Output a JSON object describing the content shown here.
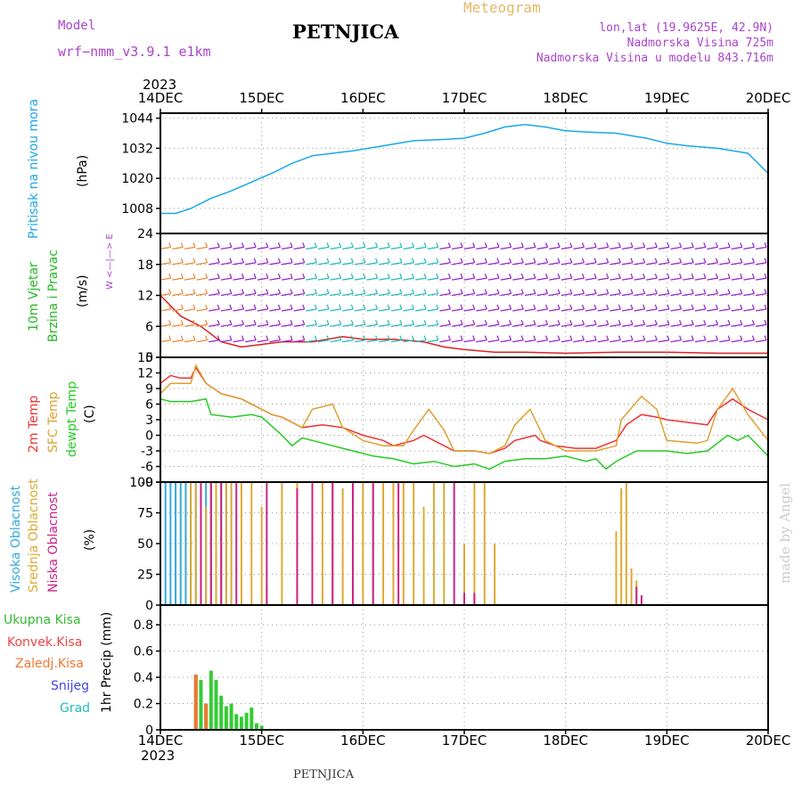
{
  "header": {
    "model_label": "Model",
    "model_name": "wrf−nmm_v3.9.1  e1km",
    "station": "PETNJICA",
    "meteogram": "Meteogram",
    "coords": "lon,lat (19.9625E, 42.9N)",
    "elevation": "Nadmorska Visina 725m",
    "model_elevation": "Nadmorska Visina u modelu 843.716m",
    "footer_station": "PETNJICA",
    "watermark": "made by Angel"
  },
  "time_axis": {
    "year_top": "2023",
    "year_bottom": "2023",
    "ticks": [
      "14DEC",
      "15DEC",
      "16DEC",
      "17DEC",
      "18DEC",
      "19DEC",
      "20DEC"
    ]
  },
  "panel_labels": {
    "pressure": {
      "name": "Pritisak na nivou mora",
      "unit": "(hPa)"
    },
    "wind": {
      "name1": "10m Vjetar",
      "name2": "Brzina i Pravac",
      "unit": "(m/s)",
      "compass": "W <—|—> E"
    },
    "temp": {
      "t2m": "2m Temp",
      "sfc": "SFC Temp",
      "dew": "dewpt Temp",
      "unit": "(C)"
    },
    "cloud": {
      "high": "Visoka Oblacnost",
      "mid": "Srednja Oblacnost",
      "low": "Niska Oblacnost",
      "unit": "(%)"
    },
    "precip": {
      "total": "Ukupna Kisa",
      "conv": "Konvek.Kisa",
      "frz": "Zaledj.Kisa",
      "snow": "Snijeg",
      "hail": "Grad",
      "unit": "1hr Precip (mm)"
    }
  },
  "colors": {
    "pressure": "#1aa7e8",
    "t2m": "#ee3333",
    "sfc": "#e0a030",
    "dew": "#22cc22",
    "high": "#33aadd",
    "mid": "#ddaa33",
    "low": "#cc2288",
    "precip_total": "#33cc33",
    "precip_conv": "#ee4444",
    "precip_frz": "#ee7733",
    "snow": "#4444dd",
    "hail": "#22bbbb",
    "wind_barb": "#9922cc",
    "wind_speed": "#dd2222"
  },
  "chart_data": [
    {
      "type": "line",
      "id": "pressure",
      "ylabel": "(hPa)",
      "yticks": [
        1008,
        1020,
        1032,
        1044
      ],
      "ylim": [
        998,
        1046
      ],
      "xlim": [
        0,
        6
      ],
      "grid": true,
      "series": [
        {
          "points": [
            [
              0,
              1006
            ],
            [
              0.15,
              1006
            ],
            [
              0.3,
              1008
            ],
            [
              0.5,
              1012
            ],
            [
              0.7,
              1015
            ],
            [
              0.9,
              1018.5
            ],
            [
              1.1,
              1022
            ],
            [
              1.3,
              1026
            ],
            [
              1.5,
              1029
            ],
            [
              1.7,
              1030
            ],
            [
              1.9,
              1031
            ],
            [
              2.2,
              1033
            ],
            [
              2.5,
              1035
            ],
            [
              2.8,
              1035.5
            ],
            [
              3.0,
              1036
            ],
            [
              3.2,
              1038
            ],
            [
              3.4,
              1040.5
            ],
            [
              3.6,
              1041.5
            ],
            [
              3.8,
              1040.5
            ],
            [
              4.0,
              1039
            ],
            [
              4.2,
              1038.5
            ],
            [
              4.5,
              1038
            ],
            [
              4.8,
              1036
            ],
            [
              5.0,
              1034
            ],
            [
              5.2,
              1033
            ],
            [
              5.5,
              1032
            ],
            [
              5.8,
              1030
            ],
            [
              6.0,
              1022
            ]
          ]
        }
      ]
    },
    {
      "type": "line",
      "id": "wind",
      "ylabel": "(m/s)",
      "yticks": [
        0,
        6,
        12,
        18,
        24
      ],
      "ylim": [
        0,
        24
      ],
      "xlim": [
        0,
        6
      ],
      "grid": true,
      "series": [
        {
          "points": [
            [
              0,
              12
            ],
            [
              0.2,
              8
            ],
            [
              0.4,
              6
            ],
            [
              0.6,
              3
            ],
            [
              0.8,
              2
            ],
            [
              1.0,
              2.5
            ],
            [
              1.2,
              3
            ],
            [
              1.5,
              3
            ],
            [
              1.8,
              4
            ],
            [
              2.0,
              3.5
            ],
            [
              2.3,
              3.5
            ],
            [
              2.6,
              3
            ],
            [
              2.8,
              2
            ],
            [
              3.0,
              1.5
            ],
            [
              3.3,
              1
            ],
            [
              3.6,
              1
            ],
            [
              4.0,
              0.8
            ],
            [
              4.5,
              1
            ],
            [
              5.0,
              1
            ],
            [
              5.5,
              0.8
            ],
            [
              6.0,
              0.8
            ]
          ]
        }
      ]
    },
    {
      "type": "line",
      "id": "temp",
      "ylabel": "(C)",
      "yticks": [
        -9,
        -6,
        -3,
        0,
        3,
        6,
        9,
        12,
        15
      ],
      "ylim": [
        -9,
        15
      ],
      "xlim": [
        0,
        6
      ],
      "grid": true,
      "series": [
        {
          "points": [
            [
              0,
              10
            ],
            [
              0.1,
              11.5
            ],
            [
              0.2,
              11
            ],
            [
              0.3,
              11
            ],
            [
              0.35,
              13
            ],
            [
              0.45,
              10
            ],
            [
              0.6,
              8
            ],
            [
              0.8,
              7
            ],
            [
              1.0,
              5
            ],
            [
              1.1,
              4
            ],
            [
              1.2,
              3.5
            ],
            [
              1.4,
              1.5
            ],
            [
              1.6,
              2
            ],
            [
              1.8,
              1.5
            ],
            [
              2.0,
              0
            ],
            [
              2.2,
              -1
            ],
            [
              2.3,
              -2
            ],
            [
              2.5,
              -1
            ],
            [
              2.6,
              0
            ],
            [
              2.7,
              -1
            ],
            [
              2.9,
              -3
            ],
            [
              3.1,
              -3
            ],
            [
              3.25,
              -3.5
            ],
            [
              3.4,
              -2.5
            ],
            [
              3.5,
              -1
            ],
            [
              3.6,
              -0.5
            ],
            [
              3.7,
              0
            ],
            [
              3.75,
              -1
            ],
            [
              3.9,
              -2
            ],
            [
              4.1,
              -2.5
            ],
            [
              4.3,
              -2.5
            ],
            [
              4.5,
              -1
            ],
            [
              4.6,
              2
            ],
            [
              4.75,
              4
            ],
            [
              4.9,
              3.5
            ],
            [
              5.0,
              3
            ],
            [
              5.2,
              2.5
            ],
            [
              5.4,
              2
            ],
            [
              5.5,
              5
            ],
            [
              5.65,
              7
            ],
            [
              5.8,
              5
            ],
            [
              6.0,
              3
            ]
          ]
        },
        {
          "points": [
            [
              0,
              8
            ],
            [
              0.1,
              10
            ],
            [
              0.2,
              10
            ],
            [
              0.3,
              10
            ],
            [
              0.35,
              13.5
            ],
            [
              0.45,
              10
            ],
            [
              0.6,
              8
            ],
            [
              0.8,
              7
            ],
            [
              1.0,
              5
            ],
            [
              1.1,
              4
            ],
            [
              1.2,
              3.5
            ],
            [
              1.4,
              1.5
            ],
            [
              1.5,
              5
            ],
            [
              1.7,
              6
            ],
            [
              1.8,
              1.5
            ],
            [
              2.0,
              -1
            ],
            [
              2.2,
              -2
            ],
            [
              2.4,
              -2
            ],
            [
              2.5,
              1
            ],
            [
              2.65,
              5
            ],
            [
              2.8,
              1
            ],
            [
              2.9,
              -3
            ],
            [
              3.1,
              -3
            ],
            [
              3.25,
              -3.5
            ],
            [
              3.4,
              -2
            ],
            [
              3.5,
              2
            ],
            [
              3.65,
              5
            ],
            [
              3.8,
              -1
            ],
            [
              4.0,
              -3
            ],
            [
              4.3,
              -3
            ],
            [
              4.5,
              -2
            ],
            [
              4.55,
              3
            ],
            [
              4.75,
              7.5
            ],
            [
              4.9,
              5
            ],
            [
              5.0,
              -1
            ],
            [
              5.3,
              -1.5
            ],
            [
              5.4,
              -1
            ],
            [
              5.5,
              5
            ],
            [
              5.65,
              9
            ],
            [
              5.8,
              4
            ],
            [
              6.0,
              -1
            ]
          ]
        },
        {
          "points": [
            [
              0,
              7
            ],
            [
              0.1,
              6.5
            ],
            [
              0.3,
              6.5
            ],
            [
              0.45,
              7
            ],
            [
              0.5,
              4
            ],
            [
              0.7,
              3.5
            ],
            [
              0.9,
              4
            ],
            [
              1.0,
              3.5
            ],
            [
              1.2,
              0
            ],
            [
              1.3,
              -2
            ],
            [
              1.4,
              -0.5
            ],
            [
              1.5,
              -1
            ],
            [
              1.7,
              -2
            ],
            [
              1.9,
              -3
            ],
            [
              2.1,
              -4
            ],
            [
              2.3,
              -4.5
            ],
            [
              2.5,
              -5.5
            ],
            [
              2.7,
              -5
            ],
            [
              2.9,
              -6
            ],
            [
              3.1,
              -5.5
            ],
            [
              3.25,
              -6.5
            ],
            [
              3.4,
              -5
            ],
            [
              3.6,
              -4.5
            ],
            [
              3.8,
              -4.5
            ],
            [
              4.0,
              -4
            ],
            [
              4.2,
              -5
            ],
            [
              4.3,
              -4.5
            ],
            [
              4.4,
              -6.5
            ],
            [
              4.5,
              -5
            ],
            [
              4.7,
              -3
            ],
            [
              4.9,
              -3
            ],
            [
              5.0,
              -3
            ],
            [
              5.2,
              -3.5
            ],
            [
              5.4,
              -3
            ],
            [
              5.5,
              -1.5
            ],
            [
              5.6,
              0
            ],
            [
              5.7,
              -1
            ],
            [
              5.8,
              0
            ],
            [
              6.0,
              -4
            ]
          ]
        }
      ]
    },
    {
      "type": "bar",
      "id": "cloud",
      "ylabel": "(%)",
      "yticks": [
        0,
        25,
        50,
        75,
        100
      ],
      "ylim": [
        0,
        100
      ],
      "xlim": [
        0,
        6
      ],
      "grid": true,
      "series": [
        {
          "x": [
            0.05,
            0.1,
            0.15,
            0.2,
            0.25,
            0.3,
            0.35,
            0.4,
            0.45,
            0.5,
            0.55,
            0.6,
            0.65,
            0.7
          ],
          "values": [
            100,
            100,
            100,
            100,
            100,
            100,
            100,
            100,
            100,
            100,
            100,
            100,
            100,
            100
          ]
        },
        {
          "x": [
            0.3,
            0.35,
            0.4,
            0.45,
            0.5,
            0.55,
            0.6,
            0.65,
            0.7,
            0.8,
            0.9,
            1.0,
            1.05,
            1.2,
            1.35,
            1.5,
            1.6,
            1.7,
            1.8,
            1.9,
            2.0,
            2.1,
            2.2,
            2.3,
            2.4,
            2.5,
            2.6,
            2.7,
            2.8,
            3.0,
            3.1,
            3.2,
            3.3,
            4.5,
            4.55,
            4.6,
            4.65,
            4.7
          ],
          "values": [
            100,
            100,
            100,
            80,
            100,
            100,
            60,
            100,
            100,
            100,
            100,
            80,
            15,
            100,
            100,
            100,
            100,
            100,
            95,
            100,
            100,
            100,
            100,
            100,
            100,
            100,
            80,
            100,
            100,
            50,
            100,
            100,
            50,
            60,
            95,
            100,
            30,
            20
          ]
        },
        {
          "x": [
            0.4,
            0.5,
            0.6,
            0.75,
            1.05,
            1.35,
            1.5,
            1.7,
            1.9,
            2.1,
            2.35,
            2.9,
            3.0,
            3.1,
            4.7,
            4.75
          ],
          "values": [
            100,
            100,
            100,
            100,
            100,
            95,
            100,
            100,
            100,
            100,
            100,
            100,
            10,
            10,
            15,
            8
          ]
        }
      ]
    },
    {
      "type": "bar",
      "id": "precip",
      "ylabel": "1hr Precip (mm)",
      "yticks": [
        0,
        0.2,
        0.4,
        0.6,
        0.8
      ],
      "ylim": [
        0,
        0.95
      ],
      "xlim": [
        0,
        6
      ],
      "grid": true,
      "series": [
        {
          "x": [
            0.35,
            0.4,
            0.45,
            0.5,
            0.55,
            0.6,
            0.65,
            0.7,
            0.75,
            0.8,
            0.85,
            0.9,
            0.95,
            1.0
          ],
          "values": [
            0.42,
            0.38,
            0.2,
            0.45,
            0.38,
            0.26,
            0.18,
            0.2,
            0.12,
            0.1,
            0.13,
            0.17,
            0.05,
            0.03
          ]
        },
        {
          "x": [
            0.35,
            0.45
          ],
          "values": [
            0.42,
            0.2
          ]
        }
      ]
    }
  ]
}
